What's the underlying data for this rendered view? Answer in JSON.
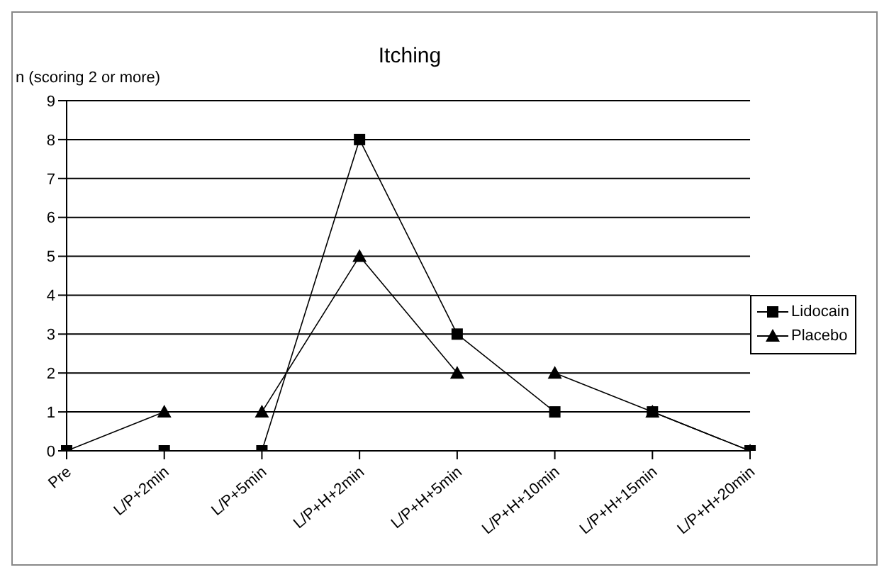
{
  "chart_data": {
    "type": "line",
    "title": "Itching",
    "ylabel": "n (scoring 2 or more)",
    "categories": [
      "Pre",
      "L/P+2min",
      "L/P+5min",
      "L/P+H+2min",
      "L/P+H+5min",
      "L/P+H+10min",
      "L/P+H+15min",
      "L/P+H+20min"
    ],
    "series": [
      {
        "name": "Lidocain",
        "color": "#000000",
        "marker": "square",
        "values": [
          0,
          0,
          0,
          8,
          3,
          1,
          1,
          0
        ]
      },
      {
        "name": "Placebo",
        "color": "#000000",
        "marker": "triangle",
        "values": [
          0,
          1,
          1,
          5,
          2,
          2,
          1,
          0
        ]
      }
    ],
    "ylim": [
      0,
      9
    ],
    "yticks": [
      0,
      1,
      2,
      3,
      4,
      5,
      6,
      7,
      8,
      9
    ],
    "grid": "y",
    "legend": "right",
    "line_style": "solid"
  }
}
